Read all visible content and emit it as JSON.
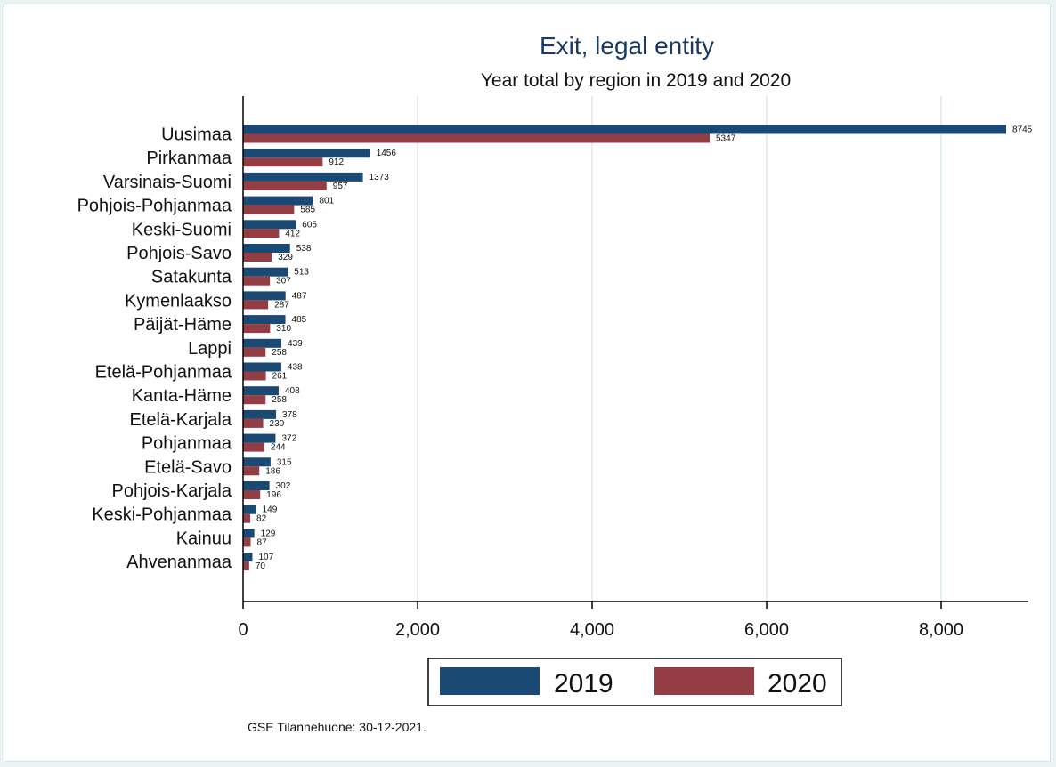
{
  "colors": {
    "series_2019": "#1a4a74",
    "series_2020": "#943d44",
    "grid": "#e4eef0",
    "axis": "#000000"
  },
  "chart_data": {
    "type": "bar",
    "orientation": "horizontal",
    "title": "Exit, legal entity",
    "subtitle": "Year total by region in 2019 and 2020",
    "note": "GSE Tilannehuone: 30-12-2021.",
    "categories": [
      "Uusimaa",
      "Pirkanmaa",
      "Varsinais-Suomi",
      "Pohjois-Pohjanmaa",
      "Keski-Suomi",
      "Pohjois-Savo",
      "Satakunta",
      "Kymenlaakso",
      "Päijät-Häme",
      "Lappi",
      "Etelä-Pohjanmaa",
      "Kanta-Häme",
      "Etelä-Karjala",
      "Pohjanmaa",
      "Etelä-Savo",
      "Pohjois-Karjala",
      "Keski-Pohjanmaa",
      "Kainuu",
      "Ahvenanmaa"
    ],
    "series": [
      {
        "name": "2019",
        "values": [
          8745,
          1456,
          1373,
          801,
          605,
          538,
          513,
          487,
          485,
          439,
          438,
          408,
          378,
          372,
          315,
          302,
          149,
          129,
          107
        ]
      },
      {
        "name": "2020",
        "values": [
          5347,
          912,
          957,
          585,
          412,
          329,
          307,
          287,
          310,
          258,
          261,
          258,
          230,
          244,
          186,
          196,
          82,
          87,
          70
        ]
      }
    ],
    "xlim": [
      0,
      9000
    ],
    "xticks": [
      0,
      2000,
      4000,
      6000,
      8000
    ],
    "xtick_labels": [
      "0",
      "2,000",
      "4,000",
      "6,000",
      "8,000"
    ],
    "grid": true,
    "legend_position": "bottom"
  }
}
